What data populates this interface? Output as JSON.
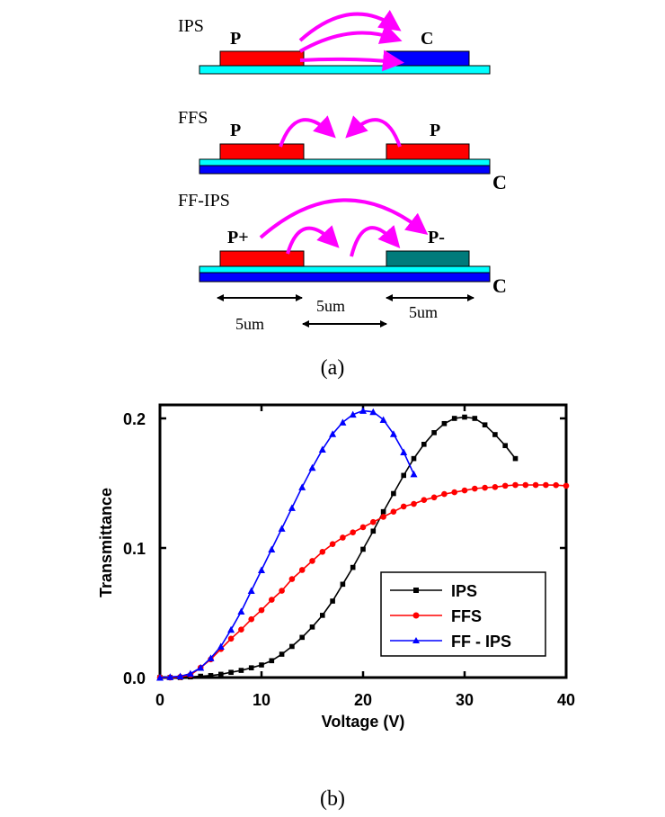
{
  "figure_a": {
    "caption": "(a)",
    "panels": [
      {
        "mode": "IPS",
        "left_label": "P",
        "right_label": "C",
        "bottom_label": ""
      },
      {
        "mode": "FFS",
        "left_label": "P",
        "right_label": "P",
        "bottom_label": "C"
      },
      {
        "mode": "FF-IPS",
        "left_label": "P+",
        "right_label": "P-",
        "bottom_label": "C"
      }
    ],
    "dimensions": {
      "left": "5um",
      "gap": "5um",
      "right": "5um"
    },
    "colors": {
      "pixel_electrode": "#ff0000",
      "common_electrode": "#0000ff",
      "negative_electrode": "#007b7b",
      "insulator": "#00ffff",
      "field_arrow": "#ff00ff"
    }
  },
  "figure_b": {
    "caption": "(b)"
  },
  "chart_data": {
    "type": "line",
    "title": "",
    "xlabel": "Voltage (V)",
    "ylabel": "Transmittance",
    "xlim": [
      0,
      40
    ],
    "ylim": [
      0,
      0.21
    ],
    "xticks": [
      "0",
      "10",
      "20",
      "30",
      "40"
    ],
    "yticks": [
      "0.0",
      "0.1",
      "0.2"
    ],
    "legend_position": "bottom-right",
    "series": [
      {
        "name": "IPS",
        "color": "#000000",
        "marker": "square",
        "x": [
          0,
          1,
          2,
          3,
          4,
          5,
          6,
          7,
          8,
          9,
          10,
          11,
          12,
          13,
          14,
          15,
          16,
          17,
          18,
          19,
          20,
          21,
          22,
          23,
          24,
          25,
          26,
          27,
          28,
          29,
          30,
          31,
          32,
          33,
          34,
          35
        ],
        "y": [
          0,
          0,
          0,
          0.0005,
          0.001,
          0.0015,
          0.0025,
          0.004,
          0.0055,
          0.0075,
          0.0097,
          0.013,
          0.018,
          0.024,
          0.031,
          0.039,
          0.048,
          0.059,
          0.072,
          0.085,
          0.099,
          0.113,
          0.128,
          0.142,
          0.156,
          0.169,
          0.18,
          0.189,
          0.196,
          0.2,
          0.201,
          0.2,
          0.195,
          0.1875,
          0.179,
          0.169
        ]
      },
      {
        "name": "FFS",
        "color": "#ff0000",
        "marker": "circle",
        "x": [
          0,
          1,
          2,
          3,
          4,
          5,
          6,
          7,
          8,
          9,
          10,
          11,
          12,
          13,
          14,
          15,
          16,
          17,
          18,
          19,
          20,
          21,
          22,
          23,
          24,
          25,
          26,
          27,
          28,
          29,
          30,
          31,
          32,
          33,
          34,
          35,
          36,
          37,
          38,
          39,
          40
        ],
        "y": [
          0,
          0,
          0.0005,
          0.002,
          0.0076,
          0.014,
          0.022,
          0.03,
          0.037,
          0.045,
          0.052,
          0.06,
          0.067,
          0.076,
          0.083,
          0.09,
          0.097,
          0.103,
          0.108,
          0.112,
          0.116,
          0.12,
          0.124,
          0.128,
          0.132,
          0.134,
          0.137,
          0.139,
          0.1416,
          0.143,
          0.1444,
          0.1458,
          0.1465,
          0.147,
          0.148,
          0.1486,
          0.1486,
          0.1486,
          0.1486,
          0.1485,
          0.148
        ]
      },
      {
        "name": "FF - IPS",
        "color": "#0000ff",
        "marker": "triangle",
        "x": [
          0,
          1,
          2,
          3,
          4,
          5,
          6,
          7,
          8,
          9,
          10,
          11,
          12,
          13,
          14,
          15,
          16,
          17,
          18,
          19,
          20,
          21,
          22,
          23,
          24,
          25
        ],
        "y": [
          0,
          0.0005,
          0.001,
          0.003,
          0.0076,
          0.015,
          0.024,
          0.037,
          0.051,
          0.067,
          0.083,
          0.099,
          0.115,
          0.131,
          0.147,
          0.162,
          0.176,
          0.188,
          0.197,
          0.203,
          0.206,
          0.205,
          0.199,
          0.188,
          0.174,
          0.157
        ]
      }
    ]
  }
}
